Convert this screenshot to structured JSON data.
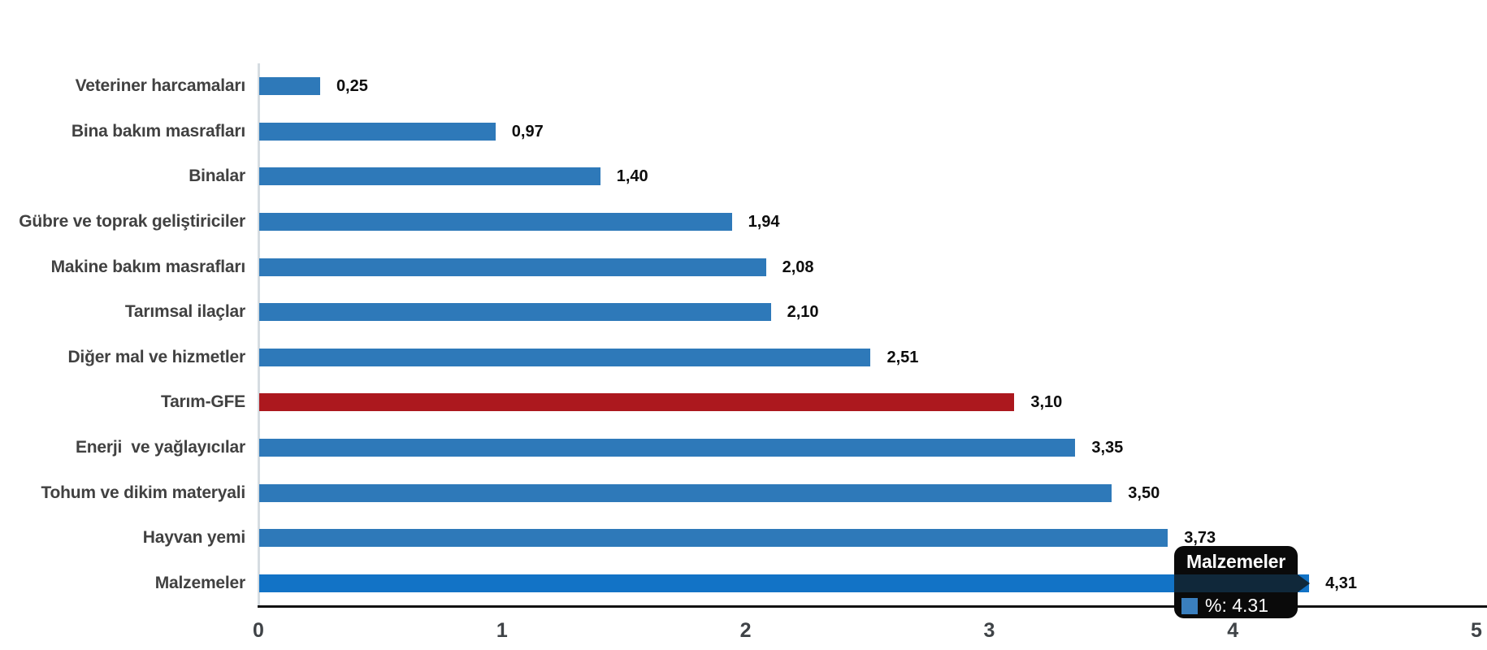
{
  "chart_data": {
    "type": "bar",
    "orientation": "horizontal",
    "title": "",
    "xlabel": "",
    "ylabel": "",
    "xlim": [
      0,
      5
    ],
    "x_ticks": [
      "0",
      "1",
      "2",
      "3",
      "4",
      "5"
    ],
    "grid": false,
    "legend": false,
    "decimal_style": "comma",
    "categories": [
      "Veteriner harcamaları",
      "Bina bakım masrafları",
      "Binalar",
      "Gübre ve toprak geliştiriciler",
      "Makine bakım masrafları",
      "Tarımsal ilaçlar",
      "Diğer mal ve hizmetler",
      "Tarım-GFE",
      "Enerji  ve yağlayıcılar",
      "Tohum ve dikim materyali",
      "Hayvan yemi",
      "Malzemeler"
    ],
    "values": [
      0.25,
      0.97,
      1.4,
      1.94,
      2.08,
      2.1,
      2.51,
      3.1,
      3.35,
      3.5,
      3.73,
      4.31
    ],
    "rows": [
      {
        "label": "Veteriner harcamaları",
        "value": 0.25,
        "value_label": "0,25",
        "color_key": "normal"
      },
      {
        "label": "Bina bakım masrafları",
        "value": 0.97,
        "value_label": "0,97",
        "color_key": "normal"
      },
      {
        "label": "Binalar",
        "value": 1.4,
        "value_label": "1,40",
        "color_key": "normal"
      },
      {
        "label": "Gübre ve toprak geliştiriciler",
        "value": 1.94,
        "value_label": "1,94",
        "color_key": "normal"
      },
      {
        "label": "Makine bakım masrafları",
        "value": 2.08,
        "value_label": "2,08",
        "color_key": "normal"
      },
      {
        "label": "Tarımsal ilaçlar",
        "value": 2.1,
        "value_label": "2,10",
        "color_key": "normal"
      },
      {
        "label": "Diğer mal ve hizmetler",
        "value": 2.51,
        "value_label": "2,51",
        "color_key": "normal"
      },
      {
        "label": "Tarım-GFE",
        "value": 3.1,
        "value_label": "3,10",
        "color_key": "highlight"
      },
      {
        "label": "Enerji  ve yağlayıcılar",
        "value": 3.35,
        "value_label": "3,35",
        "color_key": "normal"
      },
      {
        "label": "Tohum ve dikim materyali",
        "value": 3.5,
        "value_label": "3,50",
        "color_key": "normal"
      },
      {
        "label": "Hayvan yemi",
        "value": 3.73,
        "value_label": "3,73",
        "color_key": "normal"
      },
      {
        "label": "Malzemeler",
        "value": 4.31,
        "value_label": "4,31",
        "color_key": "hovered"
      }
    ],
    "colors": {
      "normal": "#2E79B9",
      "highlight": "#AC181E",
      "hovered": "#1273C6",
      "pointer_band": "#10283A",
      "axis_line": "#111111",
      "baseline": "#D6DCE1",
      "category_text": "#414141",
      "value_text": "#0D0D0D",
      "tick_text": "#3F4347",
      "tooltip_bg": "#0A0A0A",
      "tooltip_text": "#FFFFFF"
    }
  },
  "tooltip": {
    "title": "Malzemeler",
    "value_text": "%: 4.31",
    "swatch_color": "#3A7FBE"
  }
}
